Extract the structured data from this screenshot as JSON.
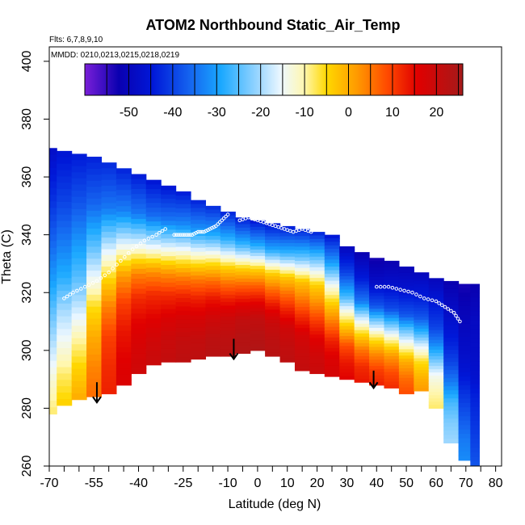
{
  "chart_data": {
    "type": "heatmap",
    "title": "ATOM2 Northbound Static_Air_Temp",
    "annotations": [
      "Flts: 6,7,8,9,10",
      "MMDD: 0210,0213,0215,0218,0219"
    ],
    "xlabel": "Latitude (deg N)",
    "ylabel": "Theta (C)",
    "xlim": [
      -70,
      82
    ],
    "ylim": [
      260,
      405
    ],
    "x_ticks": [
      -70,
      -55,
      -40,
      -25,
      -10,
      0,
      10,
      20,
      30,
      40,
      50,
      60,
      70,
      80
    ],
    "x_tick_labels": [
      "-70",
      "-55",
      "-40",
      "-25",
      "-10",
      "0",
      "10",
      "20",
      "30",
      "40",
      "50",
      "60",
      "70",
      "80"
    ],
    "y_ticks": [
      260,
      280,
      300,
      320,
      340,
      360,
      380,
      400
    ],
    "y_tick_labels": [
      "260",
      "280",
      "300",
      "320",
      "340",
      "360",
      "380",
      "400"
    ],
    "colorbar": {
      "range": [
        -60,
        26
      ],
      "ticks": [
        -50,
        -40,
        -30,
        -20,
        -10,
        0,
        10,
        20
      ],
      "tick_labels": [
        "-50",
        "-40",
        "-30",
        "-20",
        "-10",
        "0",
        "10",
        "20"
      ]
    },
    "surface": {
      "lat": [
        -70,
        -65,
        -60,
        -55,
        -50,
        -45,
        -40,
        -35,
        -30,
        -25,
        -20,
        -15,
        -10,
        -5,
        0,
        5,
        10,
        15,
        20,
        25,
        30,
        35,
        40,
        45,
        50,
        55,
        60,
        65,
        70,
        73
      ],
      "top_theta": [
        370,
        369,
        368,
        367,
        365,
        363,
        361,
        359,
        357,
        355,
        352,
        350,
        348,
        346,
        345,
        344,
        343,
        342,
        341,
        340,
        336,
        334,
        332,
        331,
        329,
        327,
        325,
        324,
        323,
        323
      ],
      "bottom_theta": [
        278,
        281,
        283,
        284,
        285,
        288,
        292,
        295,
        296,
        296,
        297,
        298,
        298,
        299,
        300,
        298,
        296,
        293,
        292,
        291,
        290,
        289,
        288,
        287,
        285,
        286,
        280,
        268,
        262,
        260
      ],
      "temperature": [
        [
          -48,
          -46,
          -45,
          -44,
          -43,
          -44,
          -45,
          -46,
          -46,
          -45,
          -44,
          -43,
          -44,
          -45,
          -46,
          -46,
          -45,
          -44,
          -44,
          -46,
          -50,
          -52,
          -53,
          -52,
          -51,
          -50,
          -50,
          -52,
          -53,
          -52
        ],
        [
          -42,
          -40,
          -38,
          -36,
          -34,
          -33,
          -34,
          -35,
          -34,
          -32,
          -30,
          -28,
          -27,
          -27,
          -28,
          -29,
          -27,
          -24,
          -23,
          -30,
          -40,
          -45,
          -48,
          -47,
          -46,
          -45,
          -45,
          -48,
          -50,
          -49
        ],
        [
          -35,
          -33,
          -30,
          -24,
          -16,
          -12,
          -12,
          -13,
          -12,
          -10,
          -8,
          -6,
          -5,
          -4,
          -4,
          -4,
          -3,
          -2,
          -4,
          -12,
          -26,
          -34,
          -38,
          -39,
          -38,
          -38,
          -40,
          -44,
          -48,
          -48
        ],
        [
          -30,
          -28,
          -25,
          -15,
          -5,
          2,
          4,
          3,
          3,
          4,
          5,
          6,
          6,
          7,
          7,
          6,
          6,
          5,
          3,
          -3,
          -12,
          -18,
          -22,
          -24,
          -24,
          -28,
          -33,
          -40,
          -46,
          -47
        ],
        [
          -24,
          -20,
          -18,
          -6,
          4,
          10,
          12,
          12,
          12,
          13,
          13,
          14,
          14,
          15,
          15,
          14,
          13,
          12,
          10,
          5,
          -2,
          -6,
          -8,
          -10,
          -12,
          -16,
          -24,
          -34,
          -42,
          -44
        ],
        [
          -18,
          -14,
          -10,
          0,
          10,
          14,
          16,
          16,
          17,
          18,
          18,
          19,
          20,
          21,
          21,
          20,
          19,
          18,
          16,
          13,
          9,
          5,
          3,
          2,
          0,
          -6,
          -14,
          -26,
          -38,
          -42
        ],
        [
          -12,
          -8,
          -4,
          4,
          12,
          16,
          18,
          19,
          20,
          21,
          21,
          22,
          22,
          23,
          23,
          22,
          21,
          20,
          19,
          17,
          14,
          12,
          10,
          9,
          6,
          -1,
          -10,
          -22,
          -34,
          -40
        ],
        [
          -8,
          -4,
          0,
          6,
          13,
          17,
          19,
          20,
          21,
          22,
          22,
          23,
          23,
          24,
          24,
          23,
          22,
          21,
          20,
          18,
          16,
          14,
          13,
          12,
          9,
          2,
          -8,
          -20,
          -32,
          -38
        ]
      ],
      "temperature_level_fraction": [
        0,
        0.2,
        0.38,
        0.5,
        0.62,
        0.75,
        0.88,
        1
      ]
    },
    "arrows": [
      {
        "lat": -54,
        "theta_from": 289,
        "theta_to": 282
      },
      {
        "lat": -8,
        "theta_from": 304,
        "theta_to": 297
      },
      {
        "lat": 39,
        "theta_from": 293,
        "theta_to": 287
      }
    ],
    "flight_tracks": [
      {
        "lat": [
          -65,
          -62,
          -58,
          -54,
          -50,
          -46,
          -42,
          -38,
          -34,
          -31
        ],
        "theta": [
          318,
          320,
          322,
          324,
          327,
          331,
          335,
          338,
          340,
          342
        ]
      },
      {
        "lat": [
          -28,
          -26,
          -24,
          -22,
          -20,
          -18,
          -16,
          -14,
          -12,
          -10
        ],
        "theta": [
          340,
          340,
          340,
          340,
          341,
          341,
          342,
          343,
          345,
          347
        ]
      },
      {
        "lat": [
          -6,
          -3,
          0,
          3,
          6,
          9,
          12,
          15,
          18
        ],
        "theta": [
          345,
          346,
          345,
          344,
          343,
          342,
          341,
          342,
          341
        ]
      },
      {
        "lat": [
          40,
          44,
          48,
          52,
          56,
          60,
          63,
          66,
          68
        ],
        "theta": [
          322,
          322,
          321,
          320,
          318,
          317,
          315,
          313,
          310
        ]
      }
    ],
    "grid": false
  }
}
